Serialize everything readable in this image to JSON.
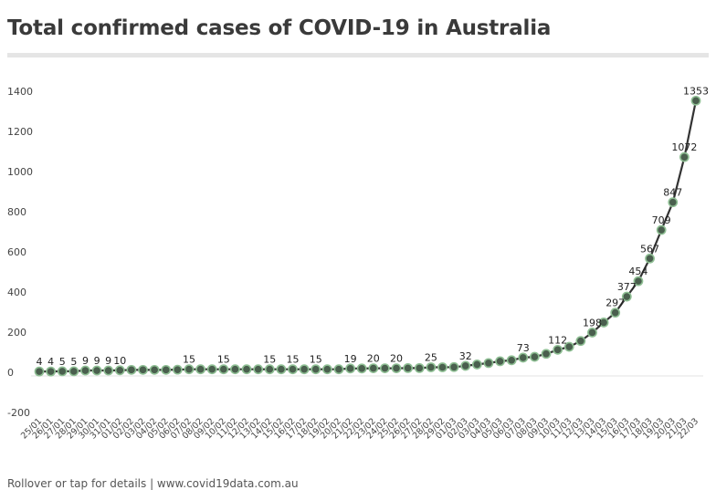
{
  "title": "Total confirmed cases of COVID-19 in Australia",
  "footer": "Rollover or tap for details | www.covid19data.com.au",
  "colors": {
    "line": "#333333",
    "point_fill": "#4a5f4e",
    "point_stroke": "#8fbf94",
    "grid": "#e3e3e3"
  },
  "chart_data": {
    "type": "line",
    "title": "Total confirmed cases of COVID-19 in Australia",
    "xlabel": "",
    "ylabel": "",
    "ylim": [
      -200,
      1400
    ],
    "yticks": [
      -200,
      0,
      200,
      400,
      600,
      800,
      1000,
      1200,
      1400
    ],
    "grid": "horizontal zero line",
    "categories": [
      "25/01",
      "26/01",
      "27/01",
      "28/01",
      "29/01",
      "30/01",
      "31/01",
      "01/02",
      "02/02",
      "03/02",
      "04/02",
      "05/02",
      "06/02",
      "07/02",
      "08/02",
      "09/02",
      "10/02",
      "11/02",
      "12/02",
      "13/02",
      "14/02",
      "15/02",
      "16/02",
      "17/02",
      "18/02",
      "19/02",
      "20/02",
      "21/02",
      "22/02",
      "23/02",
      "24/02",
      "25/02",
      "26/02",
      "27/02",
      "28/02",
      "29/02",
      "01/03",
      "02/03",
      "03/03",
      "04/03",
      "05/03",
      "06/03",
      "07/03",
      "08/03",
      "09/03",
      "10/03",
      "11/03",
      "12/03",
      "13/03",
      "14/03",
      "15/03",
      "16/03",
      "17/03",
      "18/03",
      "19/03",
      "20/03",
      "21/03",
      "22/03"
    ],
    "values": [
      4,
      4,
      5,
      5,
      9,
      9,
      9,
      10,
      12,
      12,
      12,
      12,
      13,
      15,
      15,
      15,
      15,
      15,
      15,
      15,
      15,
      15,
      15,
      15,
      15,
      15,
      15,
      19,
      19,
      20,
      20,
      20,
      21,
      21,
      25,
      25,
      26,
      32,
      39,
      46,
      55,
      60,
      73,
      77,
      92,
      112,
      127,
      156,
      198,
      248,
      297,
      377,
      454,
      567,
      709,
      847,
      1072,
      1353
    ],
    "labeled_points": [
      {
        "index": 0,
        "text": "4"
      },
      {
        "index": 1,
        "text": "4"
      },
      {
        "index": 2,
        "text": "5"
      },
      {
        "index": 3,
        "text": "5"
      },
      {
        "index": 4,
        "text": "9"
      },
      {
        "index": 5,
        "text": "9"
      },
      {
        "index": 6,
        "text": "9"
      },
      {
        "index": 7,
        "text": "10"
      },
      {
        "index": 13,
        "text": "15"
      },
      {
        "index": 16,
        "text": "15"
      },
      {
        "index": 20,
        "text": "15"
      },
      {
        "index": 22,
        "text": "15"
      },
      {
        "index": 24,
        "text": "15"
      },
      {
        "index": 27,
        "text": "19"
      },
      {
        "index": 29,
        "text": "20"
      },
      {
        "index": 31,
        "text": "20"
      },
      {
        "index": 34,
        "text": "25"
      },
      {
        "index": 37,
        "text": "32"
      },
      {
        "index": 42,
        "text": "73"
      },
      {
        "index": 45,
        "text": "112"
      },
      {
        "index": 48,
        "text": "198"
      },
      {
        "index": 50,
        "text": "297"
      },
      {
        "index": 51,
        "text": "377"
      },
      {
        "index": 52,
        "text": "454"
      },
      {
        "index": 53,
        "text": "567"
      },
      {
        "index": 54,
        "text": "709"
      },
      {
        "index": 55,
        "text": "847"
      },
      {
        "index": 56,
        "text": "1072"
      },
      {
        "index": 57,
        "text": "1353"
      }
    ]
  }
}
